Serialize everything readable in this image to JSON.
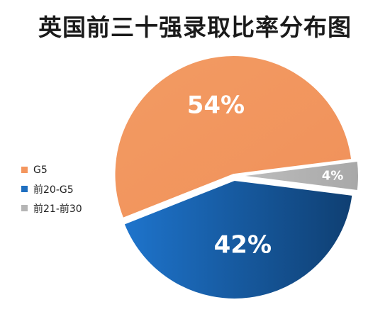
{
  "title": "英国前三十强录取比率分布图",
  "chart_data": {
    "type": "pie",
    "title": "英国前三十强录取比率分布图",
    "categories": [
      "G5",
      "前20-G5",
      "前21-前30"
    ],
    "values": [
      54,
      42,
      4
    ],
    "labels": [
      "54%",
      "42%",
      "4%"
    ],
    "colors": [
      "#F4965E",
      "#1F6FC0",
      "#B5B5B5"
    ],
    "legend_position": "left"
  }
}
